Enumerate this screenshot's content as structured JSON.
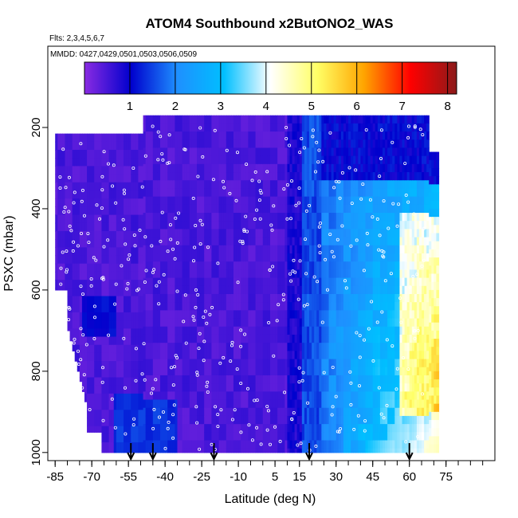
{
  "chart_data": {
    "type": "heatmap",
    "title": "ATOM4 Southbound x2ButONO2_WAS",
    "flights_label": "Flts: 2,3,4,5,6,7",
    "dates_label": "MMDD: 0427,0429,0501,0503,0506,0509",
    "xlabel": "Latitude (deg N)",
    "ylabel": "PSXC (mbar)",
    "xlim": [
      -88,
      95
    ],
    "ylim": [
      1020,
      0
    ],
    "x_ticks": [
      -85,
      -70,
      -55,
      -40,
      -25,
      -10,
      5,
      15,
      30,
      45,
      60,
      75
    ],
    "x_tick_labels": [
      "-85",
      "-70",
      "-55",
      "-40",
      "-25",
      "-10",
      "5",
      "15",
      "30",
      "45",
      "60",
      "75"
    ],
    "y_ticks": [
      200,
      400,
      600,
      800,
      1000
    ],
    "y_tick_labels": [
      "200",
      "400",
      "600",
      "800",
      "1000"
    ],
    "colorbar": {
      "min": 0,
      "max": 8.2,
      "ticks": [
        1,
        2,
        3,
        4,
        5,
        6,
        7,
        8
      ],
      "tick_labels": [
        "1",
        "2",
        "3",
        "4",
        "5",
        "6",
        "7",
        "8"
      ],
      "colors": [
        "#8a2be2",
        "#0000cd",
        "#1e90ff",
        "#00bfff",
        "#ffffff",
        "#ffff66",
        "#ffa500",
        "#ff0000",
        "#8b1a1a"
      ]
    },
    "profile_arrows_lat": [
      -54,
      -45,
      -20,
      19,
      60
    ],
    "grid": false,
    "legend": "colorbar-top"
  }
}
